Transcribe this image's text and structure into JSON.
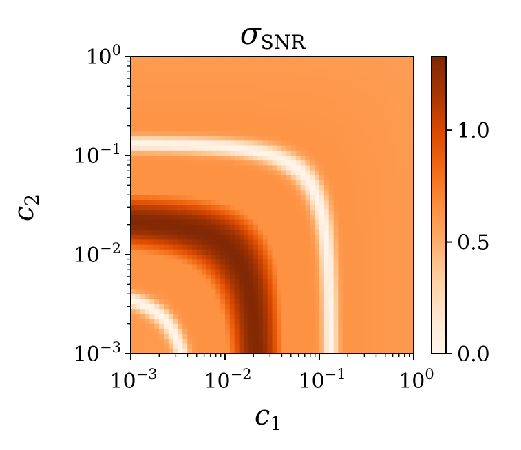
{
  "chart_data": {
    "type": "heatmap",
    "title_symbol": "σ",
    "title_subscript": "SNR",
    "xlabel_symbol": "c",
    "xlabel_subscript": "1",
    "ylabel_symbol": "c",
    "ylabel_subscript": "2",
    "x_scale": "log",
    "y_scale": "log",
    "xlim": [
      0.001,
      1
    ],
    "ylim": [
      0.001,
      1
    ],
    "x_ticks": [
      {
        "value": 0.001,
        "base": "10",
        "exp": "−3"
      },
      {
        "value": 0.01,
        "base": "10",
        "exp": "−2"
      },
      {
        "value": 0.1,
        "base": "10",
        "exp": "−1"
      },
      {
        "value": 1,
        "base": "10",
        "exp": "0"
      }
    ],
    "y_ticks": [
      {
        "value": 0.001,
        "base": "10",
        "exp": "−3"
      },
      {
        "value": 0.01,
        "base": "10",
        "exp": "−2"
      },
      {
        "value": 0.1,
        "base": "10",
        "exp": "−1"
      },
      {
        "value": 1,
        "base": "10",
        "exp": "0"
      }
    ],
    "colormap": "Oranges",
    "colormap_stops": [
      "#fff5eb",
      "#fee6ce",
      "#fdd0a2",
      "#fdae6b",
      "#fd8d3c",
      "#f16913",
      "#d94801",
      "#a63603",
      "#7f2704"
    ],
    "colorbar": {
      "range": [
        0,
        1.33
      ],
      "ticks": [
        {
          "value": 0.0,
          "label": "0.0"
        },
        {
          "value": 0.5,
          "label": "0.5"
        },
        {
          "value": 1.0,
          "label": "1.0"
        }
      ]
    },
    "grid": false,
    "values_note_levels": {
      "plateau_top_right": 0.64,
      "peak_band": 1.32,
      "zero_contours": 0.0
    }
  }
}
